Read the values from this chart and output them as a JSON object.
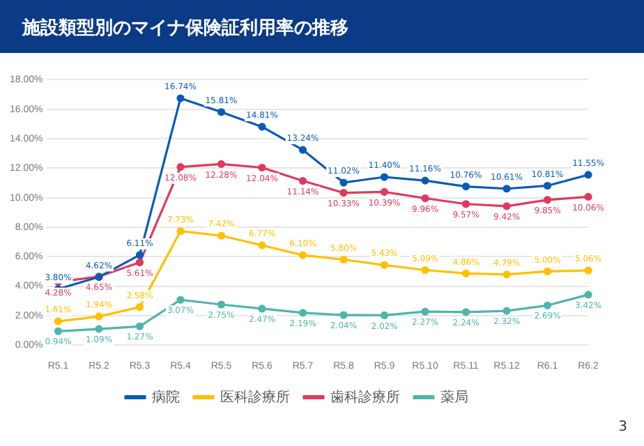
{
  "chart_data": {
    "type": "line",
    "title": "施設類型別のマイナ保険証利用率の推移",
    "categories": [
      "R5.1",
      "R5.2",
      "R5.3",
      "R5.4",
      "R5.5",
      "R5.6",
      "R5.7",
      "R5.8",
      "R5.9",
      "R5.10",
      "R5.11",
      "R5.12",
      "R6.1",
      "R6.2"
    ],
    "series": [
      {
        "name": "病院",
        "color": "#0a5bb5",
        "values": [
          3.8,
          4.62,
          6.11,
          16.74,
          15.81,
          14.81,
          13.24,
          11.02,
          11.4,
          11.16,
          10.76,
          10.61,
          10.81,
          11.55
        ],
        "value_labels": [
          "3.80%",
          "4.62%",
          "6.11%",
          "16.74%",
          "15.81%",
          "14.81%",
          "13.24%",
          "11.02%",
          "11.40%",
          "11.16%",
          "10.76%",
          "10.61%",
          "10.81%",
          "11.55%"
        ]
      },
      {
        "name": "医科診療所",
        "color": "#ffc000",
        "values": [
          1.61,
          1.94,
          2.58,
          7.73,
          7.42,
          6.77,
          6.1,
          5.8,
          5.43,
          5.09,
          4.86,
          4.79,
          5.0,
          5.06
        ],
        "value_labels": [
          "1.61%",
          "1.94%",
          "2.58%",
          "7.73%",
          "7.42%",
          "6.77%",
          "6.10%",
          "5.80%",
          "5.43%",
          "5.09%",
          "4.86%",
          "4.79%",
          "5.00%",
          "5.06%"
        ]
      },
      {
        "name": "歯科診療所",
        "color": "#e0395e",
        "values": [
          4.28,
          4.65,
          5.61,
          12.08,
          12.28,
          12.04,
          11.14,
          10.33,
          10.39,
          9.96,
          9.57,
          9.42,
          9.85,
          10.06
        ],
        "value_labels": [
          "4.28%",
          "4.65%",
          "5.61%",
          "12.08%",
          "12.28%",
          "12.04%",
          "11.14%",
          "10.33%",
          "10.39%",
          "9.96%",
          "9.57%",
          "9.42%",
          "9.85%",
          "10.06%"
        ]
      },
      {
        "name": "薬局",
        "color": "#4db6ac",
        "values": [
          0.94,
          1.09,
          1.27,
          3.07,
          2.75,
          2.47,
          2.19,
          2.04,
          2.02,
          2.27,
          2.24,
          2.32,
          2.69,
          3.42
        ],
        "value_labels": [
          "0.94%",
          "1.09%",
          "1.27%",
          "3.07%",
          "2.75%",
          "2.47%",
          "2.19%",
          "2.04%",
          "2.02%",
          "2.27%",
          "2.24%",
          "2.32%",
          "2.69%",
          "3.42%"
        ]
      }
    ],
    "ylim": [
      0,
      18
    ],
    "yticks": [
      {
        "value": 0,
        "label": "0.00%"
      },
      {
        "value": 2,
        "label": "2.00%"
      },
      {
        "value": 4,
        "label": "4.00%"
      },
      {
        "value": 6,
        "label": "6.00%"
      },
      {
        "value": 8,
        "label": "8.00%"
      },
      {
        "value": 10,
        "label": "10.00%"
      },
      {
        "value": 12,
        "label": "12.00%"
      },
      {
        "value": 14,
        "label": "14.00%"
      },
      {
        "value": 16,
        "label": "16.00%"
      },
      {
        "value": 18,
        "label": "18.00%"
      }
    ],
    "grid": "y",
    "legend": "bottom",
    "marker": "circle",
    "line_style": "solid",
    "annotations": [
      "3"
    ]
  }
}
